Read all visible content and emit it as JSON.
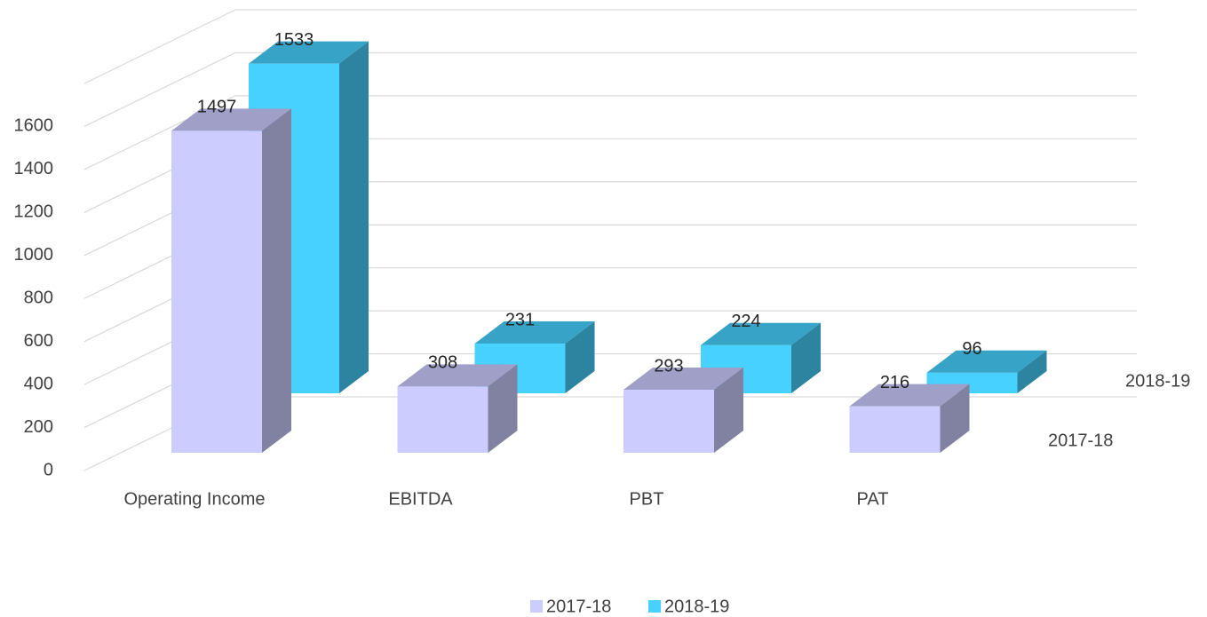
{
  "chart_data": {
    "type": "bar3d",
    "categories": [
      "Operating Income",
      "EBITDA",
      "PBT",
      "PAT"
    ],
    "series": [
      {
        "name": "2017-18",
        "color": "#ccccff",
        "values": [
          1497,
          308,
          293,
          216
        ]
      },
      {
        "name": "2018-19",
        "color": "#47d1ff",
        "values": [
          1533,
          231,
          224,
          96
        ]
      }
    ],
    "ylim": [
      0,
      1800
    ],
    "yticks": [
      0,
      200,
      400,
      600,
      800,
      1000,
      1200,
      1400,
      1600
    ],
    "grid": true,
    "legend": "bottom"
  }
}
